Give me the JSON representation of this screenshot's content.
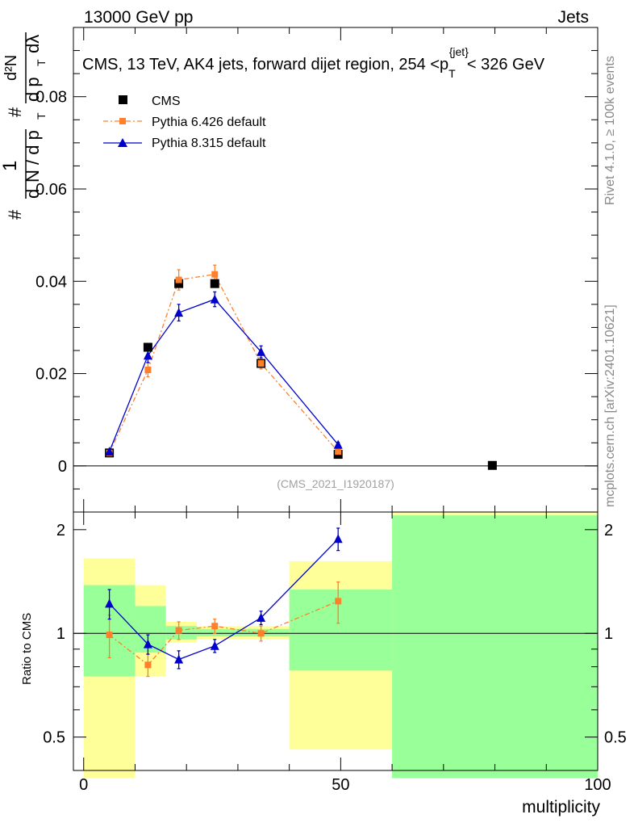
{
  "header": {
    "left": "13000 GeV pp",
    "right": "Jets"
  },
  "side_labels": {
    "rivet": "Rivet 4.1.0, ≥ 100k events",
    "site": "mcplots.cern.ch [arXiv:2401.10621]"
  },
  "watermark": "(CMS_2021_I1920187)",
  "chart_data": [
    {
      "type": "scatter",
      "title_parts": {
        "pre": "CMS, 13 TeV, AK4 jets, forward dijet region, 254 <p",
        "sub": "T",
        "sup": "{jet}",
        "post": "< 326 GeV"
      },
      "ylabel_parts": {
        "num": "1",
        "den_a": "d",
        "den_b": "N / d p",
        "den_c": "T",
        "hash": "#",
        "right_num": "d²N",
        "right_den_a": "d p",
        "right_den_b": "T",
        "right_den_c": "dλ"
      },
      "xlim": [
        -2,
        100
      ],
      "ylim": [
        -0.01,
        0.095
      ],
      "yticks": [
        0,
        0.02,
        0.04,
        0.06,
        0.08
      ],
      "ytick_labels": [
        "0",
        "0.02",
        "0.04",
        "0.06",
        "0.08"
      ],
      "legend": [
        "CMS",
        "Pythia 6.426 default",
        "Pythia 8.315 default"
      ],
      "series": [
        {
          "name": "CMS",
          "color": "#000000",
          "marker": "square",
          "x": [
            5,
            12.5,
            18.5,
            25.5,
            34.5,
            49.5,
            79.5
          ],
          "y": [
            0.0028,
            0.0257,
            0.0395,
            0.0395,
            0.0222,
            0.0025,
            0.0001
          ]
        },
        {
          "name": "Pythia 6.426 default",
          "color": "#ff7f2a",
          "marker": "square",
          "x": [
            5,
            12.5,
            18.5,
            25.5,
            34.5,
            49.5
          ],
          "y": [
            0.0028,
            0.0208,
            0.0403,
            0.0415,
            0.0222,
            0.0031
          ],
          "err": [
            0.0004,
            0.0015,
            0.0022,
            0.002,
            0.0012,
            0.0004
          ]
        },
        {
          "name": "Pythia 8.315 default",
          "color": "#0000cc",
          "marker": "triangle",
          "x": [
            5,
            12.5,
            18.5,
            25.5,
            34.5,
            49.5
          ],
          "y": [
            0.0031,
            0.0239,
            0.0332,
            0.0361,
            0.0247,
            0.0046
          ],
          "err": [
            0.0004,
            0.0015,
            0.0018,
            0.0016,
            0.0013,
            0.0005
          ]
        }
      ]
    },
    {
      "type": "scatter",
      "ylabel": "Ratio to CMS",
      "xlabel": "multiplicity",
      "xlim": [
        -2,
        100
      ],
      "ylim": [
        0.4,
        2.25
      ],
      "yticks": [
        0.5,
        1,
        2
      ],
      "ytick_labels": [
        "0.5",
        "1",
        "2"
      ],
      "xticks": [
        0,
        50,
        100
      ],
      "xtick_labels": [
        "0",
        "50",
        "100"
      ],
      "bands": [
        {
          "x": [
            0,
            10
          ],
          "yellow": [
            0.38,
            1.65
          ],
          "green": [
            0.75,
            1.38
          ]
        },
        {
          "x": [
            10,
            16
          ],
          "yellow": [
            0.75,
            1.38
          ],
          "green": [
            0.88,
            1.2
          ]
        },
        {
          "x": [
            16,
            22
          ],
          "yellow": [
            0.94,
            1.08
          ],
          "green": [
            0.96,
            1.05
          ]
        },
        {
          "x": [
            22,
            30
          ],
          "yellow": [
            0.96,
            1.05
          ],
          "green": [
            0.98,
            1.03
          ]
        },
        {
          "x": [
            30,
            40
          ],
          "yellow": [
            0.96,
            1.05
          ],
          "green": [
            0.98,
            1.03
          ]
        },
        {
          "x": [
            40,
            60
          ],
          "yellow": [
            0.46,
            1.62
          ],
          "green": [
            0.78,
            1.34
          ]
        },
        {
          "x": [
            60,
            100
          ],
          "yellow": [
            0.38,
            2.25
          ],
          "green": [
            0.38,
            2.2
          ]
        }
      ],
      "series": [
        {
          "name": "Pythia 6.426 default",
          "color": "#ff7f2a",
          "marker": "square",
          "x": [
            5,
            12.5,
            18.5,
            25.5,
            34.5,
            49.5
          ],
          "y": [
            0.99,
            0.81,
            1.02,
            1.05,
            1.0,
            1.24
          ],
          "err": [
            0.14,
            0.06,
            0.06,
            0.05,
            0.05,
            0.17
          ]
        },
        {
          "name": "Pythia 8.315 default",
          "color": "#0000cc",
          "marker": "triangle",
          "x": [
            5,
            12.5,
            18.5,
            25.5,
            34.5,
            49.5
          ],
          "y": [
            1.22,
            0.93,
            0.84,
            0.92,
            1.11,
            1.88
          ],
          "err": [
            0.12,
            0.06,
            0.05,
            0.04,
            0.05,
            0.14
          ]
        }
      ]
    }
  ]
}
